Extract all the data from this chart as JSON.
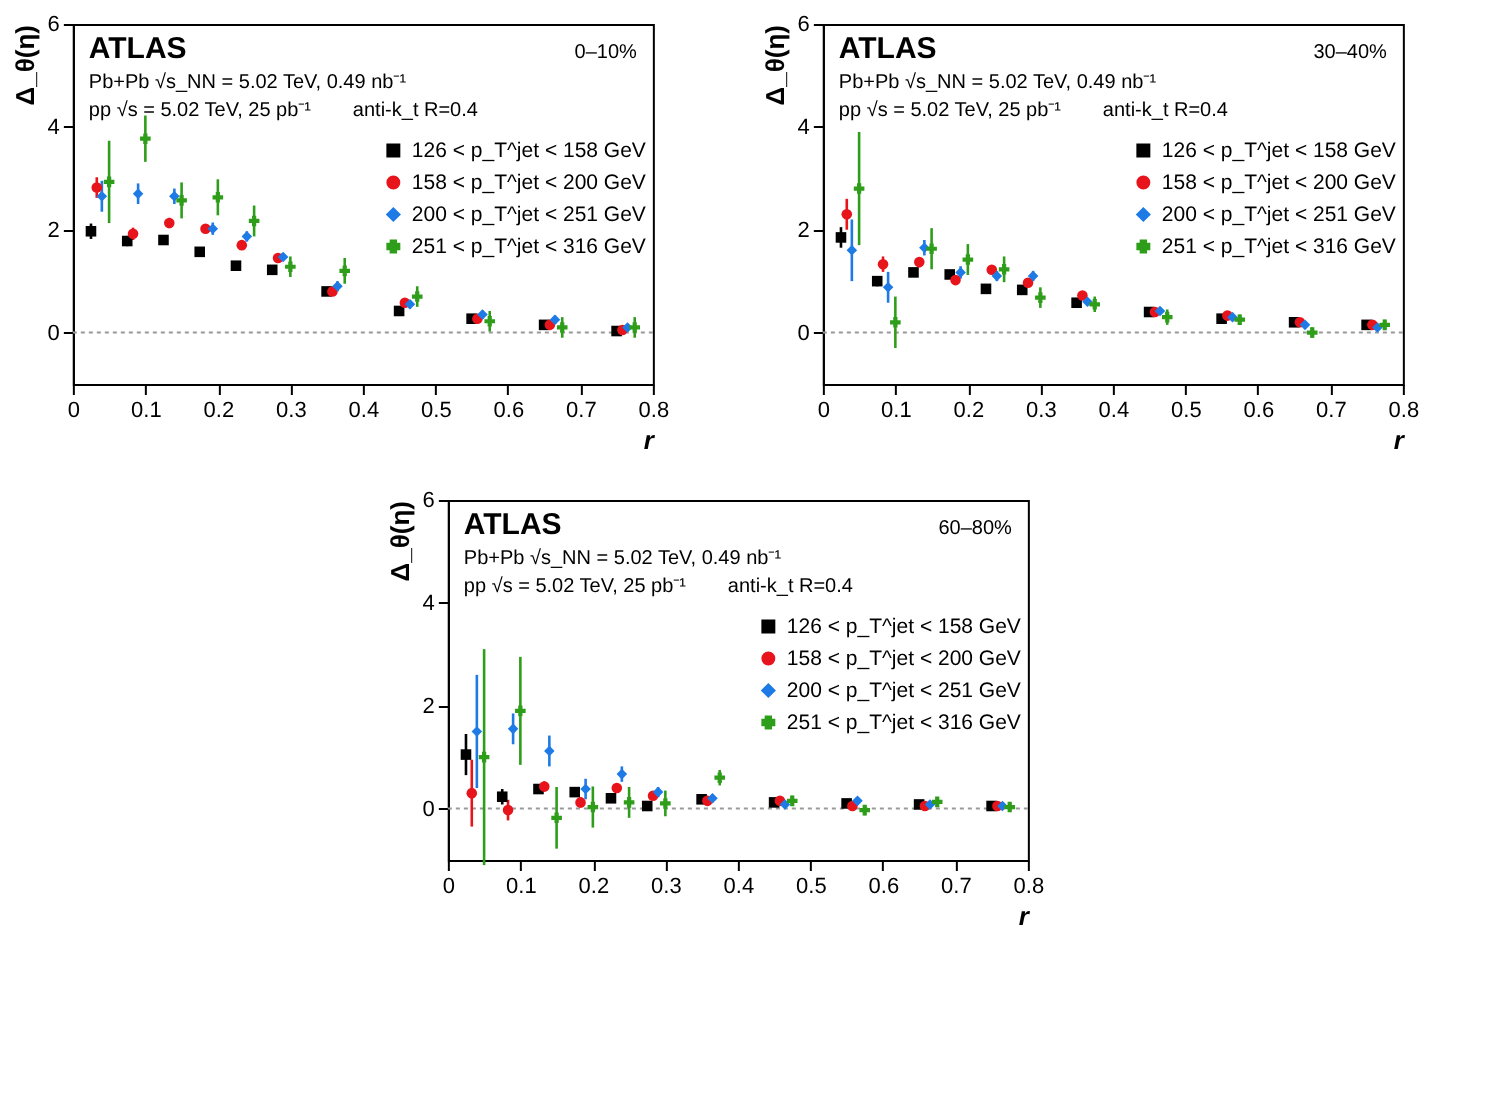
{
  "chart_data": [
    {
      "type": "scatter",
      "xlabel": "r",
      "ylabel": "Δ_θ(η)",
      "xlim": [
        0,
        0.8
      ],
      "xticks": [
        0,
        0.1,
        0.2,
        0.3,
        0.4,
        0.5,
        0.6,
        0.7,
        0.8
      ],
      "ylim": [
        -1,
        6
      ],
      "yticks": [
        0,
        2,
        4,
        6
      ],
      "grid": false,
      "legend": "right",
      "annotations": [
        "ATLAS",
        "Pb+Pb √s_NN = 5.02 TeV, 0.49 nb⁻¹",
        "pp √s = 5.02 TeV, 25 pb⁻¹",
        "anti-k_t R=0.4",
        "0–10%"
      ],
      "ref_lines": [
        {
          "axis": "y",
          "value": 0,
          "color": "#999999",
          "line_style": "dotted"
        }
      ],
      "series": [
        {
          "name": "126 < p_T^jet < 158 GeV",
          "color": "#000000",
          "marker": "square",
          "x": [
            0.025,
            0.075,
            0.125,
            0.175,
            0.225,
            0.275,
            0.35,
            0.45,
            0.55,
            0.65,
            0.75
          ],
          "values": [
            1.97,
            1.78,
            1.8,
            1.57,
            1.3,
            1.22,
            0.8,
            0.42,
            0.27,
            0.15,
            0.03
          ],
          "errors": [
            0.15,
            0.1,
            0.08,
            0.06,
            0.06,
            0.05,
            0.05,
            0.04,
            0.04,
            0.03,
            0.03
          ]
        },
        {
          "name": "158 < p_T^jet < 200 GeV",
          "color": "#e8141c",
          "marker": "circle",
          "x": [
            0.033,
            0.083,
            0.133,
            0.183,
            0.233,
            0.283,
            0.358,
            0.458,
            0.558,
            0.658,
            0.758
          ],
          "values": [
            2.82,
            1.92,
            2.13,
            2.02,
            1.7,
            1.45,
            0.8,
            0.58,
            0.27,
            0.15,
            0.05
          ],
          "errors": [
            0.2,
            0.12,
            0.1,
            0.08,
            0.08,
            0.06,
            0.05,
            0.05,
            0.04,
            0.04,
            0.03
          ]
        },
        {
          "name": "200 < p_T^jet < 251 GeV",
          "color": "#1e7be6",
          "marker": "diamond",
          "x": [
            0.04,
            0.09,
            0.14,
            0.193,
            0.24,
            0.29,
            0.365,
            0.465,
            0.565,
            0.665,
            0.765
          ],
          "values": [
            2.65,
            2.7,
            2.65,
            2.02,
            1.87,
            1.47,
            0.9,
            0.55,
            0.35,
            0.25,
            0.1
          ],
          "errors": [
            0.3,
            0.2,
            0.15,
            0.12,
            0.1,
            0.05,
            0.1,
            0.08,
            0.08,
            0.08,
            0.06
          ]
        },
        {
          "name": "251 < p_T^jet < 316 GeV",
          "color": "#2e9e1a",
          "marker": "cross",
          "x": [
            0.05,
            0.1,
            0.15,
            0.2,
            0.25,
            0.3,
            0.375,
            0.475,
            0.575,
            0.675,
            0.775
          ],
          "values": [
            2.93,
            3.77,
            2.57,
            2.63,
            2.17,
            1.28,
            1.2,
            0.7,
            0.22,
            0.1,
            0.1
          ],
          "errors": [
            0.8,
            0.45,
            0.35,
            0.35,
            0.3,
            0.2,
            0.25,
            0.2,
            0.2,
            0.2,
            0.2
          ]
        }
      ]
    },
    {
      "type": "scatter",
      "xlabel": "r",
      "ylabel": "Δ_θ(η)",
      "xlim": [
        0,
        0.8
      ],
      "xticks": [
        0,
        0.1,
        0.2,
        0.3,
        0.4,
        0.5,
        0.6,
        0.7,
        0.8
      ],
      "ylim": [
        -1,
        6
      ],
      "yticks": [
        0,
        2,
        4,
        6
      ],
      "grid": false,
      "legend": "right",
      "annotations": [
        "ATLAS",
        "Pb+Pb √s_NN = 5.02 TeV, 0.49 nb⁻¹",
        "pp √s = 5.02 TeV, 25 pb⁻¹",
        "anti-k_t R=0.4",
        "30–40%"
      ],
      "ref_lines": [
        {
          "axis": "y",
          "value": 0,
          "color": "#999999",
          "line_style": "dotted"
        }
      ],
      "series": [
        {
          "name": "126 < p_T^jet < 158 GeV",
          "color": "#000000",
          "marker": "square",
          "x": [
            0.025,
            0.075,
            0.125,
            0.175,
            0.225,
            0.275,
            0.35,
            0.45,
            0.55,
            0.65,
            0.75
          ],
          "values": [
            1.85,
            1.0,
            1.17,
            1.13,
            0.85,
            0.83,
            0.58,
            0.4,
            0.27,
            0.2,
            0.15
          ],
          "errors": [
            0.2,
            0.1,
            0.08,
            0.07,
            0.06,
            0.05,
            0.05,
            0.04,
            0.04,
            0.03,
            0.03
          ]
        },
        {
          "name": "158 < p_T^jet < 200 GeV",
          "color": "#e8141c",
          "marker": "circle",
          "x": [
            0.033,
            0.083,
            0.133,
            0.183,
            0.233,
            0.283,
            0.358,
            0.458,
            0.558,
            0.658,
            0.758
          ],
          "values": [
            2.3,
            1.33,
            1.37,
            1.02,
            1.22,
            0.97,
            0.72,
            0.4,
            0.33,
            0.2,
            0.15
          ],
          "errors": [
            0.3,
            0.15,
            0.1,
            0.08,
            0.07,
            0.07,
            0.05,
            0.05,
            0.04,
            0.04,
            0.03
          ]
        },
        {
          "name": "200 < p_T^jet < 251 GeV",
          "color": "#1e7be6",
          "marker": "diamond",
          "x": [
            0.04,
            0.09,
            0.14,
            0.19,
            0.24,
            0.29,
            0.365,
            0.465,
            0.565,
            0.665,
            0.765
          ],
          "values": [
            1.6,
            0.88,
            1.65,
            1.17,
            1.1,
            1.1,
            0.6,
            0.42,
            0.3,
            0.15,
            0.1
          ],
          "errors": [
            0.6,
            0.3,
            0.15,
            0.12,
            0.1,
            0.1,
            0.06,
            0.05,
            0.05,
            0.05,
            0.05
          ]
        },
        {
          "name": "251 < p_T^jet < 316 GeV",
          "color": "#2e9e1a",
          "marker": "cross",
          "x": [
            0.05,
            0.1,
            0.15,
            0.2,
            0.25,
            0.3,
            0.375,
            0.475,
            0.575,
            0.675,
            0.775
          ],
          "values": [
            2.8,
            0.2,
            1.63,
            1.42,
            1.23,
            0.68,
            0.55,
            0.3,
            0.25,
            0.0,
            0.15
          ],
          "errors": [
            1.1,
            0.5,
            0.4,
            0.3,
            0.25,
            0.2,
            0.15,
            0.15,
            0.1,
            0.1,
            0.1
          ]
        }
      ]
    },
    {
      "type": "scatter",
      "xlabel": "r",
      "ylabel": "Δ_θ(η)",
      "xlim": [
        0,
        0.8
      ],
      "xticks": [
        0,
        0.1,
        0.2,
        0.3,
        0.4,
        0.5,
        0.6,
        0.7,
        0.8
      ],
      "ylim": [
        -1,
        6
      ],
      "yticks": [
        0,
        2,
        4,
        6
      ],
      "grid": false,
      "legend": "right",
      "annotations": [
        "ATLAS",
        "Pb+Pb √s_NN = 5.02 TeV, 0.49 nb⁻¹",
        "pp √s = 5.02 TeV, 25 pb⁻¹",
        "anti-k_t R=0.4",
        "60–80%"
      ],
      "ref_lines": [
        {
          "axis": "y",
          "value": 0,
          "color": "#999999",
          "line_style": "dotted"
        }
      ],
      "series": [
        {
          "name": "126 < p_T^jet < 158 GeV",
          "color": "#000000",
          "marker": "square",
          "x": [
            0.025,
            0.075,
            0.125,
            0.175,
            0.225,
            0.275,
            0.35,
            0.45,
            0.55,
            0.65,
            0.75
          ],
          "values": [
            1.05,
            0.23,
            0.38,
            0.32,
            0.2,
            0.05,
            0.18,
            0.12,
            0.1,
            0.08,
            0.05
          ],
          "errors": [
            0.4,
            0.15,
            0.08,
            0.06,
            0.05,
            0.05,
            0.04,
            0.04,
            0.03,
            0.03,
            0.03
          ]
        },
        {
          "name": "158 < p_T^jet < 200 GeV",
          "color": "#e8141c",
          "marker": "circle",
          "x": [
            0.033,
            0.083,
            0.133,
            0.183,
            0.233,
            0.283,
            0.358,
            0.458,
            0.558,
            0.658,
            0.758
          ],
          "values": [
            0.3,
            -0.03,
            0.43,
            0.12,
            0.4,
            0.25,
            0.15,
            0.15,
            0.05,
            0.05,
            0.05
          ],
          "errors": [
            0.65,
            0.2,
            0.1,
            0.1,
            0.08,
            0.07,
            0.05,
            0.04,
            0.04,
            0.03,
            0.03
          ]
        },
        {
          "name": "200 < p_T^jet < 251 GeV",
          "color": "#1e7be6",
          "marker": "diamond",
          "x": [
            0.04,
            0.09,
            0.14,
            0.19,
            0.24,
            0.29,
            0.365,
            0.465,
            0.565,
            0.665,
            0.765
          ],
          "values": [
            1.5,
            1.55,
            1.12,
            0.38,
            0.67,
            0.32,
            0.2,
            0.08,
            0.15,
            0.08,
            0.05
          ],
          "errors": [
            1.1,
            0.3,
            0.3,
            0.2,
            0.15,
            0.1,
            0.08,
            0.06,
            0.05,
            0.05,
            0.04
          ]
        },
        {
          "name": "251 < p_T^jet < 316 GeV",
          "color": "#2e9e1a",
          "marker": "cross",
          "x": [
            0.05,
            0.1,
            0.15,
            0.2,
            0.25,
            0.3,
            0.375,
            0.475,
            0.575,
            0.675,
            0.775
          ],
          "values": [
            1.0,
            1.9,
            -0.18,
            0.03,
            0.12,
            0.1,
            0.6,
            0.15,
            -0.03,
            0.13,
            0.03
          ],
          "errors": [
            2.1,
            1.05,
            0.6,
            0.4,
            0.3,
            0.25,
            0.15,
            0.1,
            0.1,
            0.08,
            0.06
          ]
        }
      ]
    }
  ]
}
